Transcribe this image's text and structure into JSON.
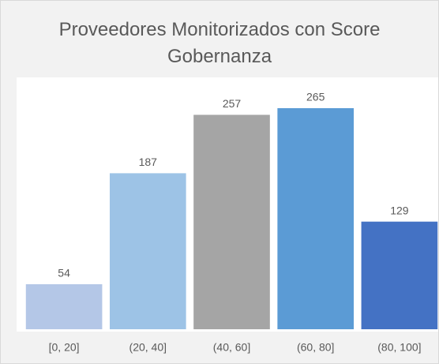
{
  "chart_data": {
    "type": "bar",
    "title": "Proveedores Monitorizados con Score Gobernanza",
    "categories": [
      "[0, 20]",
      "(20, 40]",
      "(40, 60]",
      "(60, 80]",
      "(80, 100]"
    ],
    "values": [
      54,
      187,
      257,
      265,
      129
    ],
    "colors": [
      "#b4c7e7",
      "#9dc3e6",
      "#a5a5a5",
      "#5b9bd5",
      "#4472c4"
    ],
    "ylim": [
      0,
      300
    ]
  }
}
